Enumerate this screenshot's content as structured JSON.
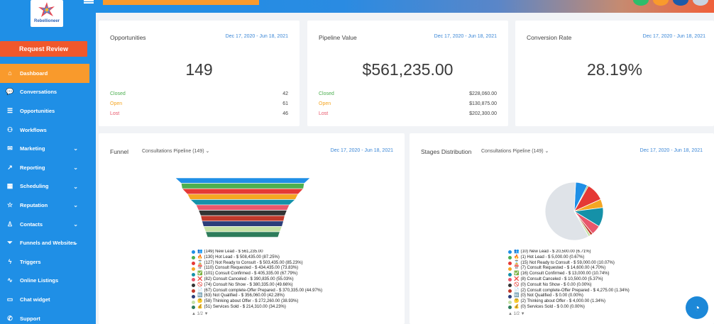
{
  "app": {
    "brand": "Rebellioneer",
    "colors": {
      "sidebar": "#1f8fe6",
      "accent_orange": "#f99a2c",
      "request_button": "#f0582c",
      "link_blue": "#3a86d6",
      "closed": "#4caf50",
      "open": "#f5a623",
      "lost": "#e8576b"
    }
  },
  "sidebar": {
    "request_button": "Request Review",
    "items": [
      {
        "label": "Dashboard",
        "icon": "dashboard-icon",
        "glyph": "⌂",
        "active": true,
        "chevron": false
      },
      {
        "label": "Conversations",
        "icon": "chat-bubble-icon",
        "glyph": "💬",
        "active": false,
        "chevron": false
      },
      {
        "label": "Opportunities",
        "icon": "filter-list-icon",
        "glyph": "☰",
        "active": false,
        "chevron": false
      },
      {
        "label": "Workflows",
        "icon": "workflow-icon",
        "glyph": "⚇",
        "active": false,
        "chevron": false
      },
      {
        "label": "Marketing",
        "icon": "mail-icon",
        "glyph": "✉",
        "active": false,
        "chevron": true
      },
      {
        "label": "Reporting",
        "icon": "chart-line-icon",
        "glyph": "↗",
        "active": false,
        "chevron": true
      },
      {
        "label": "Scheduling",
        "icon": "calendar-icon",
        "glyph": "▦",
        "active": false,
        "chevron": true
      },
      {
        "label": "Reputation",
        "icon": "star-icon",
        "glyph": "☆",
        "active": false,
        "chevron": true
      },
      {
        "label": "Contacts",
        "icon": "person-icon",
        "glyph": "♙",
        "active": false,
        "chevron": true
      },
      {
        "label": "Funnels and Websites",
        "icon": "funnel-icon",
        "glyph": "⏷",
        "active": false,
        "chevron": true
      },
      {
        "label": "Triggers",
        "icon": "lightning-icon",
        "glyph": "ϟ",
        "active": false,
        "chevron": false
      },
      {
        "label": "Online Listings",
        "icon": "pulse-icon",
        "glyph": "∿",
        "active": false,
        "chevron": false
      },
      {
        "label": "Chat widget",
        "icon": "chat-widget-icon",
        "glyph": "▭",
        "active": false,
        "chevron": false
      },
      {
        "label": "Support",
        "icon": "support-icon",
        "glyph": "✆",
        "active": false,
        "chevron": false
      }
    ]
  },
  "stats": [
    {
      "title": "Opportunities",
      "date": "Dec 17, 2020 - Jun 18, 2021",
      "big": "149",
      "rows": [
        {
          "label": "Closed",
          "value": "42",
          "kind": "closed"
        },
        {
          "label": "Open",
          "value": "61",
          "kind": "open"
        },
        {
          "label": "Lost",
          "value": "46",
          "kind": "lost"
        }
      ]
    },
    {
      "title": "Pipeline Value",
      "date": "Dec 17, 2020 - Jun 18, 2021",
      "big": "$561,235.00",
      "rows": [
        {
          "label": "Closed",
          "value": "$228,060.00",
          "kind": "closed"
        },
        {
          "label": "Open",
          "value": "$130,875.00",
          "kind": "open"
        },
        {
          "label": "Lost",
          "value": "$202,300.00",
          "kind": "lost"
        }
      ]
    },
    {
      "title": "Conversion Rate",
      "date": "Dec 17, 2020 - Jun 18, 2021",
      "big": "28.19%",
      "rows": []
    }
  ],
  "funnel": {
    "title": "Funnel",
    "pipeline": "Consultations Pipeline (149)",
    "date": "Dec 17, 2020 - Jun 18, 2021",
    "pager": "1/2",
    "legend": [
      {
        "text": "(149) New Lead - $ 561,235.00",
        "color": "#1f8fe6",
        "icon": "👥"
      },
      {
        "text": "(130) Hot Lead - $ 508,435.00 (87.25%)",
        "color": "#4caf50",
        "icon": "🔥"
      },
      {
        "text": "(127) Not Ready to Consult - $ 503,435.00 (85.23%)",
        "color": "#e53935",
        "icon": "⌛"
      },
      {
        "text": "(110) Consult Requested - $ 434,435.00 (73.83%)",
        "color": "#f5a623",
        "icon": "📅"
      },
      {
        "text": "(101) Consult Confirmed - $ 405,335.00 (67.79%)",
        "color": "#1591a8",
        "icon": "✅"
      },
      {
        "text": "(82) Consult Canceled - $ 390,835.00 (55.03%)",
        "color": "#e8576b",
        "icon": "❌"
      },
      {
        "text": "(74) Consult No Show - $ 380,335.00 (49.66%)",
        "color": "#333333",
        "icon": "🚫"
      },
      {
        "text": "(67) Consult complete-Offer Prepared - $ 370,335.00 (44.97%)",
        "color": "#c0392b",
        "icon": "📄"
      },
      {
        "text": "(63) Not Qualified - $ 356,060.00 (42.28%)",
        "color": "#2c3e7a",
        "icon": "🆖"
      },
      {
        "text": "(58) Thinking about Offer - $ 272,260.00 (38.93%)",
        "color": "#c5e1a5",
        "icon": "🤔"
      },
      {
        "text": "(51) Services Sold - $ 214,310.00 (34.23%)",
        "color": "#2e7d5b",
        "icon": "💰"
      }
    ]
  },
  "stages": {
    "title": "Stages Distribution",
    "pipeline": "Consultations Pipeline (149)",
    "date": "Dec 17, 2020 - Jun 18, 2021",
    "pager": "1/2",
    "legend": [
      {
        "text": "(10) New Lead - $ 20,500.00 (6.71%)",
        "color": "#1f8fe6",
        "icon": "👥"
      },
      {
        "text": "(1) Hot Lead - $ 5,000.00 (0.67%)",
        "color": "#4caf50",
        "icon": "🔥"
      },
      {
        "text": "(15) Not Ready to Consult - $ 59,000.00 (10.07%)",
        "color": "#e53935",
        "icon": "⌛"
      },
      {
        "text": "(7) Consult Requested - $ 14,600.00 (4.70%)",
        "color": "#f5a623",
        "icon": "📅"
      },
      {
        "text": "(16) Consult Confirmed - $ 13,000.00 (10.74%)",
        "color": "#1591a8",
        "icon": "✅"
      },
      {
        "text": "(8) Consult Canceled - $ 10,500.00 (5.37%)",
        "color": "#e8576b",
        "icon": "❌"
      },
      {
        "text": "(0) Consult No Show - $ 0.00 (0.00%)",
        "color": "#333333",
        "icon": "🚫"
      },
      {
        "text": "(2) Consult complete-Offer Prepared - $ 4,275.00 (1.34%)",
        "color": "#c0392b",
        "icon": "📄"
      },
      {
        "text": "(0) Not Qualified - $ 0.00 (0.00%)",
        "color": "#2c3e7a",
        "icon": "🆖"
      },
      {
        "text": "(2) Thinking about Offer - $ 4,000.00 (1.34%)",
        "color": "#c5e1a5",
        "icon": "🤔"
      },
      {
        "text": "(0) Services Sold - $ 0.00 (0.00%)",
        "color": "#2e7d5b",
        "icon": "💰"
      }
    ]
  },
  "chart_data": [
    {
      "type": "bar",
      "categories": [
        "New Lead",
        "Hot Lead",
        "Not Ready to Consult",
        "Consult Requested",
        "Consult Confirmed",
        "Consult Canceled",
        "Consult No Show",
        "Consult complete-Offer Prepared",
        "Not Qualified",
        "Thinking about Offer",
        "Services Sold"
      ],
      "values": [
        149,
        130,
        127,
        110,
        101,
        82,
        74,
        67,
        63,
        58,
        51
      ],
      "colors": [
        "#1f8fe6",
        "#4caf50",
        "#e53935",
        "#f5a623",
        "#1591a8",
        "#e8576b",
        "#333333",
        "#c0392b",
        "#2c3e7a",
        "#c5e1a5",
        "#2e7d5b"
      ],
      "title": "Funnel"
    },
    {
      "type": "pie",
      "categories": [
        "New Lead",
        "Hot Lead",
        "Not Ready to Consult",
        "Consult Requested",
        "Consult Confirmed",
        "Consult Canceled",
        "Consult No Show",
        "Consult complete-Offer Prepared",
        "Not Qualified",
        "Thinking about Offer",
        "Services Sold",
        "Other"
      ],
      "values": [
        6.71,
        0.67,
        10.07,
        4.7,
        10.74,
        5.37,
        0.0,
        1.34,
        0.0,
        1.34,
        0.0,
        59.06
      ],
      "colors": [
        "#1f8fe6",
        "#4caf50",
        "#e53935",
        "#f5a623",
        "#1591a8",
        "#e8576b",
        "#333333",
        "#c0392b",
        "#2c3e7a",
        "#c5e1a5",
        "#2e7d5b",
        "#dfe3e8"
      ],
      "title": "Stages Distribution"
    }
  ]
}
